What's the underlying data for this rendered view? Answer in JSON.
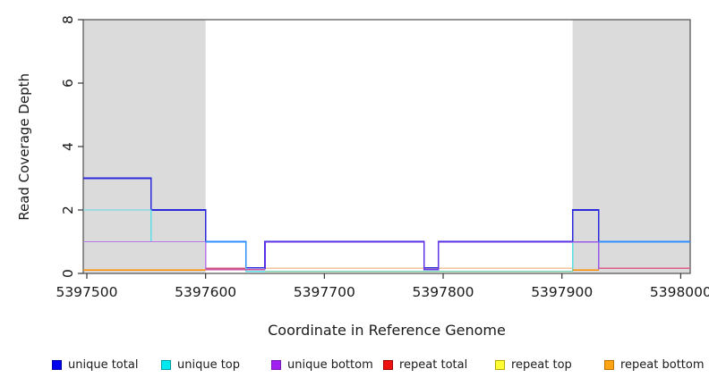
{
  "chart_data": {
    "type": "line",
    "subtype": "step-coverage-plot",
    "title": "",
    "xlabel": "Coordinate in Reference Genome",
    "ylabel": "Read Coverage Depth",
    "xlim": [
      5397497,
      5398008
    ],
    "ylim": [
      0,
      8
    ],
    "x_ticks": [
      5397500,
      5397600,
      5397700,
      5397800,
      5397900,
      5398000
    ],
    "y_ticks": [
      0,
      2,
      4,
      6,
      8
    ],
    "grid": "off",
    "legend_position": "bottom",
    "shaded_regions": [
      {
        "name": "left-gray-band",
        "x_start": 5397497,
        "x_end": 5397600,
        "color": "#DBDBDB"
      },
      {
        "name": "right-gray-band",
        "x_start": 5397909,
        "x_end": 5398008,
        "color": "#DBDBDB"
      }
    ],
    "series": [
      {
        "name": "unique total",
        "color": "#0000EE",
        "steps": [
          [
            5397500,
            3
          ],
          [
            5397554,
            2
          ],
          [
            5397600,
            1
          ],
          [
            5397634,
            0
          ],
          [
            5397650,
            1
          ],
          [
            5397784,
            0
          ],
          [
            5397796,
            1
          ],
          [
            5397909,
            2
          ],
          [
            5397931,
            1
          ],
          [
            5398000,
            1
          ]
        ]
      },
      {
        "name": "unique top",
        "color": "#00EEEE",
        "steps": [
          [
            5397500,
            2
          ],
          [
            5397554,
            1
          ],
          [
            5397634,
            0
          ],
          [
            5397909,
            1
          ],
          [
            5398000,
            1
          ]
        ]
      },
      {
        "name": "unique bottom",
        "color": "#A020F0",
        "steps": [
          [
            5397500,
            1
          ],
          [
            5397600,
            0
          ],
          [
            5397650,
            1
          ],
          [
            5397784,
            0
          ],
          [
            5397796,
            1
          ],
          [
            5397931,
            0
          ],
          [
            5398000,
            0
          ]
        ]
      },
      {
        "name": "repeat total",
        "color": "#EE1111",
        "steps": [
          [
            5397500,
            0
          ],
          [
            5398000,
            0
          ]
        ]
      },
      {
        "name": "repeat top",
        "color": "#FFFF33",
        "steps": [
          [
            5397500,
            0
          ],
          [
            5398000,
            0
          ]
        ]
      },
      {
        "name": "repeat bottom",
        "color": "#FFA513",
        "steps": [
          [
            5397500,
            0
          ],
          [
            5398000,
            0
          ]
        ]
      }
    ],
    "render_paths": [
      {
        "name": "repeat-total-baseline-left",
        "color": "#D4517F",
        "w": 1.2,
        "pts": [
          [
            5397600,
            0.16
          ],
          [
            5397634,
            0.16
          ]
        ]
      },
      {
        "name": "repeat-blend-peach",
        "color": "#EFC39E",
        "w": 1.2,
        "pts": [
          [
            5397650,
            0.16
          ],
          [
            5397909,
            0.16
          ]
        ]
      },
      {
        "name": "repeat-total-baseline-right",
        "color": "#DE5B83",
        "w": 1.2,
        "pts": [
          [
            5397931,
            0.16
          ],
          [
            5398008,
            0.16
          ]
        ]
      },
      {
        "name": "unique-total-line",
        "color": "#2B2BDC",
        "w": 1.6,
        "pts": [
          [
            5397497,
            3
          ],
          [
            5397554,
            3
          ],
          [
            5397554,
            2
          ],
          [
            5397600,
            2
          ],
          [
            5397600,
            1
          ],
          [
            5397634,
            1
          ],
          [
            5397634,
            0.18
          ],
          [
            5397650,
            0.18
          ],
          [
            5397650,
            1
          ],
          [
            5397784,
            1
          ],
          [
            5397784,
            0.18
          ],
          [
            5397796,
            0.18
          ],
          [
            5397796,
            1
          ],
          [
            5397909,
            1
          ],
          [
            5397909,
            2
          ],
          [
            5397931,
            2
          ],
          [
            5397931,
            1
          ],
          [
            5398008,
            1
          ]
        ]
      },
      {
        "name": "unique-top-line",
        "color": "#5CDEE6",
        "w": 1.4,
        "pts": [
          [
            5397497,
            2
          ],
          [
            5397554,
            2
          ],
          [
            5397554,
            1
          ],
          [
            5397634,
            1
          ],
          [
            5397634,
            0.06
          ],
          [
            5397909,
            0.06
          ],
          [
            5397909,
            1
          ],
          [
            5398008,
            1
          ]
        ]
      },
      {
        "name": "repeat-blend-green",
        "color": "#8FCB8F",
        "w": 1.2,
        "pts": [
          [
            5397650,
            0.06
          ],
          [
            5397909,
            0.06
          ]
        ]
      },
      {
        "name": "unique-bottom-left",
        "color": "#B878E8",
        "w": 1.4,
        "pts": [
          [
            5397497,
            1
          ],
          [
            5397600,
            1
          ],
          [
            5397600,
            0.12
          ]
        ]
      },
      {
        "name": "baseline-magenta-blend",
        "color": "#C8549E",
        "w": 1.2,
        "pts": [
          [
            5397600,
            0.12
          ],
          [
            5397650,
            0.12
          ]
        ]
      },
      {
        "name": "unique-bottom-mid",
        "color": "#6633E6",
        "w": 1.5,
        "pts": [
          [
            5397650,
            0.12
          ],
          [
            5397650,
            1
          ],
          [
            5397784,
            1
          ],
          [
            5397784,
            0.12
          ],
          [
            5397796,
            0.12
          ],
          [
            5397796,
            1
          ],
          [
            5397909,
            1
          ]
        ]
      },
      {
        "name": "unique-bottom-right",
        "color": "#9A5BE8",
        "w": 1.5,
        "pts": [
          [
            5397909,
            1
          ],
          [
            5397931,
            1
          ],
          [
            5397931,
            0.12
          ]
        ]
      },
      {
        "name": "unique-blend-dodger-left",
        "color": "#2E8FFF",
        "w": 1.6,
        "pts": [
          [
            5397600,
            1
          ],
          [
            5397634,
            1
          ],
          [
            5397634,
            0.18
          ]
        ]
      },
      {
        "name": "unique-blend-dodger-right",
        "color": "#2E8FFF",
        "w": 1.6,
        "pts": [
          [
            5397931,
            1
          ],
          [
            5398008,
            1
          ]
        ]
      },
      {
        "name": "repeat-bottom-left",
        "color": "#FF8C00",
        "w": 1.5,
        "pts": [
          [
            5397497,
            0.1
          ],
          [
            5397600,
            0.1
          ]
        ]
      },
      {
        "name": "repeat-bottom-mid",
        "color": "#FF8C00",
        "w": 1.5,
        "pts": [
          [
            5397909,
            0.1
          ],
          [
            5397931,
            0.1
          ]
        ]
      }
    ],
    "legend": {
      "items": [
        {
          "label": "unique total",
          "fill": "#0000EE",
          "border": "#0000A0"
        },
        {
          "label": "unique top",
          "fill": "#00E8F0",
          "border": "#009AA3"
        },
        {
          "label": "unique bottom",
          "fill": "#A021F0",
          "border": "#7817B4"
        },
        {
          "label": "repeat total",
          "fill": "#EE1111",
          "border": "#A00000"
        },
        {
          "label": "repeat top",
          "fill": "#FFFF33",
          "border": "#B8A800"
        },
        {
          "label": "repeat bottom",
          "fill": "#FFA513",
          "border": "#C07000"
        }
      ]
    },
    "frame_color": "#4D4D4D",
    "tick_color": "#333333",
    "text_color": "#1A1A1A"
  }
}
